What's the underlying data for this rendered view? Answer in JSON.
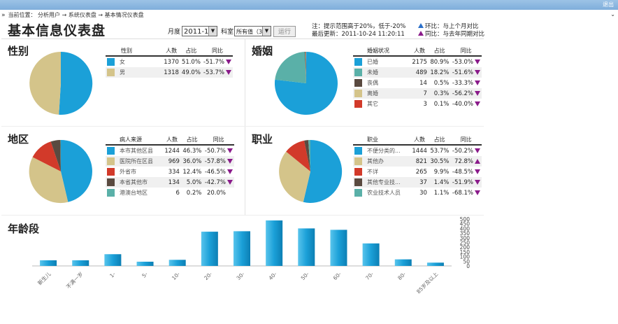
{
  "topbar": {
    "exit": "退出"
  },
  "breadcrumb": "当前位置： 分析用户 → 系统仪表盘 → 基本情况仪表盘",
  "page_title": "基本信息仪表盘",
  "controls": {
    "month_label": "月度",
    "month_value": "2011-1",
    "dept_label": "科室",
    "dept_value": "所有值（3",
    "run_label": "运行"
  },
  "notes": {
    "line1": "注：提示范围高于20%，低于-20%",
    "line2": "最后更新：2011-10-24 11:20:11",
    "legend_hb": "环比：与上个月对比",
    "legend_tb": "同比：与去年同期对比"
  },
  "colors": {
    "blue": "#1ba0d8",
    "teal": "#5ab0a8",
    "khaki": "#d4c48a",
    "red": "#d23a2a",
    "brown": "#5a4a40",
    "pct_arrow": "#8a1a8a"
  },
  "sections": {
    "gender": {
      "title": "性别",
      "headers": [
        "性别",
        "人数",
        "占比",
        "同比"
      ],
      "rows": [
        {
          "label": "女",
          "count": "1370",
          "pct": "51.0%",
          "yoy": "-51.7%",
          "dir": "down",
          "color": "#1ba0d8"
        },
        {
          "label": "男",
          "count": "1318",
          "pct": "49.0%",
          "yoy": "-53.7%",
          "dir": "down",
          "color": "#d4c48a"
        }
      ]
    },
    "marriage": {
      "title": "婚姻",
      "headers": [
        "婚姻状况",
        "人数",
        "占比",
        "同比"
      ],
      "rows": [
        {
          "label": "已婚",
          "count": "2175",
          "pct": "80.9%",
          "yoy": "-53.0%",
          "dir": "down",
          "color": "#1ba0d8"
        },
        {
          "label": "未婚",
          "count": "489",
          "pct": "18.2%",
          "yoy": "-51.6%",
          "dir": "down",
          "color": "#5ab0a8"
        },
        {
          "label": "丧偶",
          "count": "14",
          "pct": "0.5%",
          "yoy": "-33.3%",
          "dir": "down",
          "color": "#5a4a40"
        },
        {
          "label": "离婚",
          "count": "7",
          "pct": "0.3%",
          "yoy": "-56.2%",
          "dir": "down",
          "color": "#d4c48a"
        },
        {
          "label": "其它",
          "count": "3",
          "pct": "0.1%",
          "yoy": "-40.0%",
          "dir": "down",
          "color": "#d23a2a"
        }
      ]
    },
    "region": {
      "title": "地区",
      "headers": [
        "病人来源",
        "人数",
        "占比",
        "同比"
      ],
      "rows": [
        {
          "label": "本市其他区县",
          "count": "1244",
          "pct": "46.3%",
          "yoy": "-50.7%",
          "dir": "down",
          "color": "#1ba0d8"
        },
        {
          "label": "医院所在区县",
          "count": "969",
          "pct": "36.0%",
          "yoy": "-57.8%",
          "dir": "down",
          "color": "#d4c48a"
        },
        {
          "label": "外省市",
          "count": "334",
          "pct": "12.4%",
          "yoy": "-46.5%",
          "dir": "down",
          "color": "#d23a2a"
        },
        {
          "label": "本省其他市",
          "count": "134",
          "pct": "5.0%",
          "yoy": "-42.7%",
          "dir": "down",
          "color": "#5a4a40"
        },
        {
          "label": "港澳台地区",
          "count": "6",
          "pct": "0.2%",
          "yoy": "20.0%",
          "dir": "none",
          "color": "#5ab0a8"
        }
      ]
    },
    "occupation": {
      "title": "职业",
      "headers": [
        "职业",
        "人数",
        "占比",
        "同比"
      ],
      "rows": [
        {
          "label": "不便分类的...",
          "count": "1444",
          "pct": "53.7%",
          "yoy": "-50.2%",
          "dir": "down",
          "color": "#1ba0d8"
        },
        {
          "label": "其他办",
          "count": "821",
          "pct": "30.5%",
          "yoy": "72.8%",
          "dir": "up",
          "color": "#d4c48a"
        },
        {
          "label": "不详",
          "count": "265",
          "pct": "9.9%",
          "yoy": "-48.5%",
          "dir": "down",
          "color": "#d23a2a"
        },
        {
          "label": "其他专业技...",
          "count": "37",
          "pct": "1.4%",
          "yoy": "-51.9%",
          "dir": "down",
          "color": "#5a4a40"
        },
        {
          "label": "农业技术人员",
          "count": "30",
          "pct": "1.1%",
          "yoy": "-68.1%",
          "dir": "down",
          "color": "#5ab0a8"
        }
      ]
    }
  },
  "chart_data": {
    "type": "bar",
    "title": "年龄段",
    "categories": [
      "新生儿",
      "不满一岁",
      "1-",
      "5-",
      "10-",
      "20-",
      "30-",
      "40-",
      "50-",
      "60-",
      "70-",
      "80-",
      "85岁及以上"
    ],
    "values": [
      60,
      60,
      125,
      45,
      65,
      365,
      370,
      485,
      400,
      385,
      240,
      70,
      35
    ],
    "ylim": [
      0,
      500
    ],
    "yticks": [
      "0",
      "100",
      "200",
      "300",
      "400",
      "500"
    ],
    "yticks_extra": [
      "50",
      "150",
      "250",
      "350",
      "450"
    ],
    "grid": false,
    "legend": "none"
  }
}
